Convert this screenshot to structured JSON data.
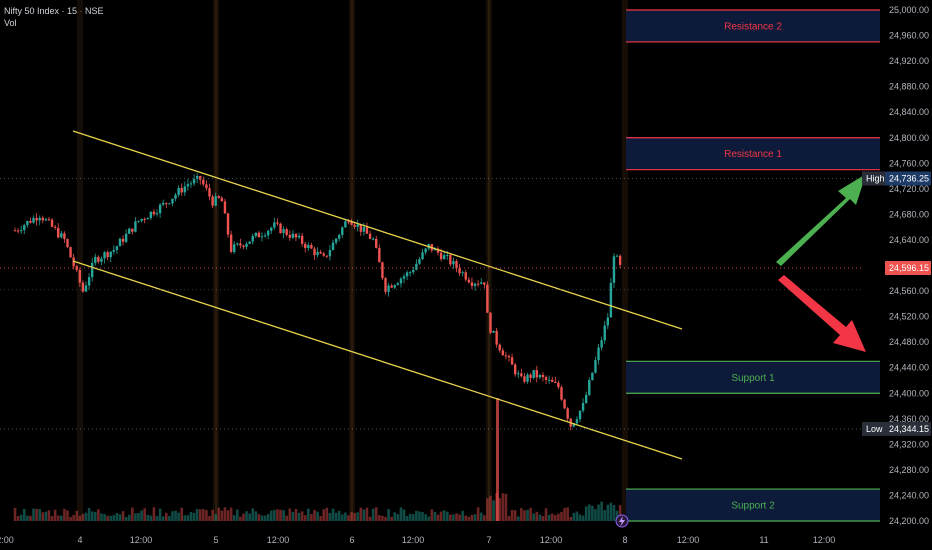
{
  "header": {
    "title": "Nifty 50 Index · 15 · NSE",
    "vol_label": "Vol"
  },
  "colors": {
    "up": "#26a69a",
    "down": "#ef5350",
    "channel": "#e8d44d",
    "resistance": "#f23645",
    "support": "#4caf50",
    "zone_fill": "#0d1a3a",
    "arrow_up": "#4caf50",
    "arrow_down": "#f23645"
  },
  "chart_data": {
    "type": "candlestick",
    "ylim": [
      24180,
      25010
    ],
    "y_ticks": [
      "25,000.00",
      "24,960.00",
      "24,920.00",
      "24,880.00",
      "24,840.00",
      "24,800.00",
      "24,760.00",
      "24,720.00",
      "24,680.00",
      "24,640.00",
      "24,600.00",
      "24,560.00",
      "24,520.00",
      "24,480.00",
      "24,440.00",
      "24,400.00",
      "24,360.00",
      "24,320.00",
      "24,280.00",
      "24,240.00",
      "24,200.00"
    ],
    "x_ticks": [
      "2:00",
      "4",
      "12:00",
      "5",
      "12:00",
      "6",
      "12:00",
      "7",
      "12:00",
      "8",
      "12:00",
      "11",
      "12:00"
    ],
    "tags": {
      "high": {
        "label": "High",
        "value": "24,736.25"
      },
      "last": {
        "value": "24,596.15"
      },
      "low": {
        "label": "Low",
        "value": "24,344.15"
      }
    },
    "zones": [
      {
        "name": "Resistance 2",
        "top": 25000,
        "bottom": 24950,
        "kind": "resistance"
      },
      {
        "name": "Resistance 1",
        "top": 24800,
        "bottom": 24750,
        "kind": "resistance"
      },
      {
        "name": "Support 1",
        "top": 24450,
        "bottom": 24400,
        "kind": "support"
      },
      {
        "name": "Support 2",
        "top": 24250,
        "bottom": 24200,
        "kind": "support"
      }
    ],
    "channel": {
      "upper": [
        [
          -1,
          24812
        ],
        [
          48.9,
          24505
        ]
      ],
      "lower": [
        [
          -1,
          24600
        ],
        [
          48.9,
          24300
        ]
      ]
    },
    "keypoints": [
      [
        0,
        24655
      ],
      [
        2,
        24680
      ],
      [
        4,
        24640
      ],
      [
        5.5,
        24560
      ],
      [
        6.5,
        24610
      ],
      [
        8,
        24625
      ],
      [
        10,
        24670
      ],
      [
        12,
        24695
      ],
      [
        14,
        24728
      ],
      [
        15,
        24735
      ],
      [
        16,
        24700
      ],
      [
        16.7,
        24705
      ],
      [
        17.5,
        24625
      ],
      [
        19,
        24640
      ],
      [
        21,
        24662
      ],
      [
        23,
        24640
      ],
      [
        25,
        24610
      ],
      [
        27,
        24675
      ],
      [
        29,
        24640
      ],
      [
        30,
        24565
      ],
      [
        32,
        24590
      ],
      [
        33.5,
        24630
      ],
      [
        35,
        24610
      ],
      [
        37,
        24575
      ],
      [
        38,
        24575
      ],
      [
        38.3,
        24510
      ],
      [
        39,
        24480
      ],
      [
        41,
        24420
      ],
      [
        42,
        24430
      ],
      [
        44,
        24410
      ],
      [
        45,
        24350
      ],
      [
        46,
        24380
      ],
      [
        47,
        24450
      ],
      [
        48,
        24520
      ],
      [
        48.5,
        24620
      ],
      [
        49,
        24597
      ]
    ]
  }
}
